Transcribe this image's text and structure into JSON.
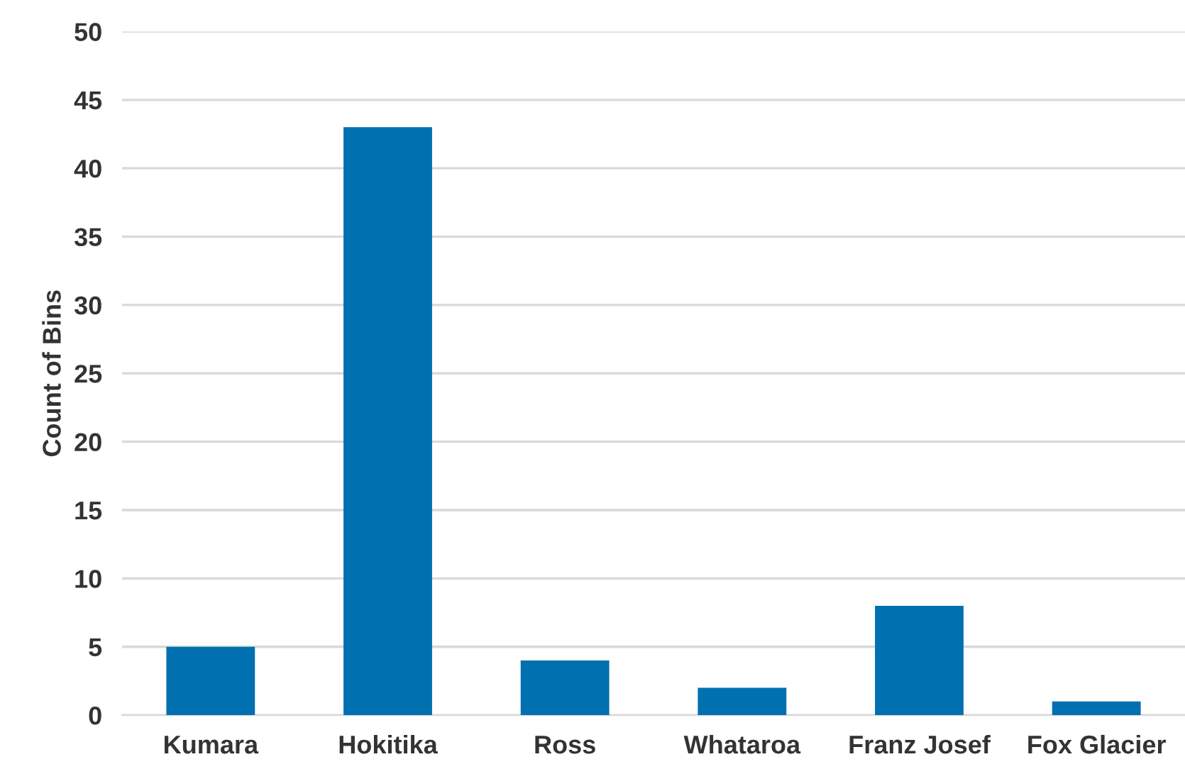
{
  "chart_data": {
    "type": "bar",
    "ylabel": "Count of Bins",
    "categories": [
      "Kumara",
      "Hokitika",
      "Ross",
      "Whataroa",
      "Franz Josef",
      "Fox Glacier"
    ],
    "values": [
      5,
      43,
      4,
      2,
      8,
      1
    ],
    "color": "#0070b0",
    "ylim": [
      0,
      50
    ],
    "yticks": [
      0,
      5,
      10,
      15,
      20,
      25,
      30,
      35,
      40,
      45,
      50
    ],
    "grid": "y",
    "legend": false
  }
}
